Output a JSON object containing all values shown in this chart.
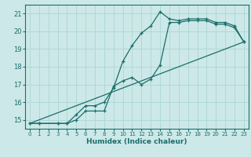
{
  "xlabel": "Humidex (Indice chaleur)",
  "ylabel": "",
  "xlim": [
    -0.5,
    23.5
  ],
  "ylim": [
    14.5,
    21.5
  ],
  "xticks": [
    0,
    1,
    2,
    3,
    4,
    5,
    6,
    7,
    8,
    9,
    10,
    11,
    12,
    13,
    14,
    15,
    16,
    17,
    18,
    19,
    20,
    21,
    22,
    23
  ],
  "yticks": [
    15,
    16,
    17,
    18,
    19,
    20,
    21
  ],
  "bg_color": "#cde8e8",
  "line_color": "#1a6e6a",
  "grid_color": "#b0d8d8",
  "curve1_x": [
    0,
    1,
    3,
    4,
    5,
    6,
    7,
    8,
    9,
    10,
    11,
    12,
    13,
    14,
    15,
    16,
    17,
    18,
    19,
    20,
    21,
    22,
    23
  ],
  "curve1_y": [
    14.8,
    14.8,
    14.8,
    14.8,
    15.3,
    15.8,
    15.8,
    16.0,
    16.8,
    18.3,
    19.2,
    19.9,
    20.3,
    21.1,
    20.7,
    20.6,
    20.7,
    20.7,
    20.7,
    20.5,
    20.5,
    20.3,
    19.4
  ],
  "curve2_x": [
    0,
    1,
    3,
    4,
    5,
    6,
    7,
    8,
    9,
    10,
    11,
    12,
    13,
    14,
    15,
    16,
    17,
    18,
    19,
    20,
    21,
    22,
    23
  ],
  "curve2_y": [
    14.8,
    14.8,
    14.8,
    14.8,
    15.0,
    15.5,
    15.5,
    15.5,
    16.9,
    17.2,
    17.4,
    17.0,
    17.3,
    18.1,
    20.5,
    20.5,
    20.6,
    20.6,
    20.6,
    20.4,
    20.4,
    20.2,
    19.4
  ],
  "line3_x": [
    0,
    23
  ],
  "line3_y": [
    14.8,
    19.4
  ]
}
